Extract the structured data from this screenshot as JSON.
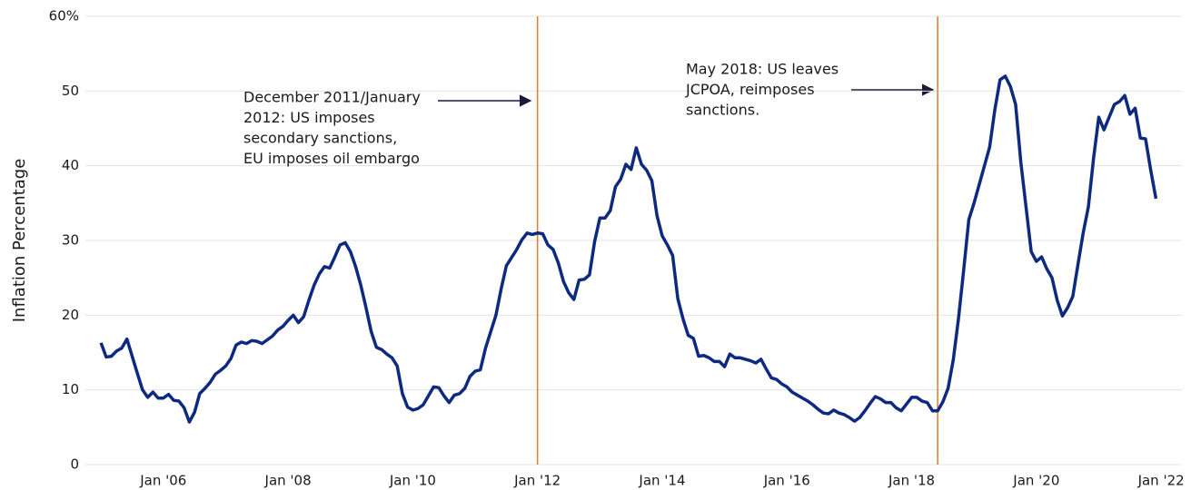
{
  "chart_data": {
    "type": "line",
    "ylabel": "Inflation Percentage",
    "ylim": [
      0,
      60
    ],
    "yticks": [
      0,
      10,
      20,
      30,
      40,
      50,
      {
        "value": 60,
        "label": "60%"
      }
    ],
    "xlim": [
      "2004-10",
      "2022-05"
    ],
    "xticks": [
      {
        "value": "2006-01",
        "label": "Jan '06"
      },
      {
        "value": "2008-01",
        "label": "Jan '08"
      },
      {
        "value": "2010-01",
        "label": "Jan '10"
      },
      {
        "value": "2012-01",
        "label": "Jan '12"
      },
      {
        "value": "2014-01",
        "label": "Jan '14"
      },
      {
        "value": "2016-01",
        "label": "Jan '16"
      },
      {
        "value": "2018-01",
        "label": "Jan '18"
      },
      {
        "value": "2020-01",
        "label": "Jan '20"
      },
      {
        "value": "2022-01",
        "label": "Jan '22"
      }
    ],
    "grid": true,
    "x": [
      "2005-01",
      "2005-02",
      "2005-03",
      "2005-04",
      "2005-05",
      "2005-06",
      "2005-07",
      "2005-08",
      "2005-09",
      "2005-10",
      "2005-11",
      "2005-12",
      "2006-01",
      "2006-02",
      "2006-03",
      "2006-04",
      "2006-05",
      "2006-06",
      "2006-07",
      "2006-08",
      "2006-09",
      "2006-10",
      "2006-11",
      "2006-12",
      "2007-01",
      "2007-02",
      "2007-03",
      "2007-04",
      "2007-05",
      "2007-06",
      "2007-07",
      "2007-08",
      "2007-09",
      "2007-10",
      "2007-11",
      "2007-12",
      "2008-01",
      "2008-02",
      "2008-03",
      "2008-04",
      "2008-05",
      "2008-06",
      "2008-07",
      "2008-08",
      "2008-09",
      "2008-10",
      "2008-11",
      "2008-12",
      "2009-01",
      "2009-02",
      "2009-03",
      "2009-04",
      "2009-05",
      "2009-06",
      "2009-07",
      "2009-08",
      "2009-09",
      "2009-10",
      "2009-11",
      "2009-12",
      "2010-01",
      "2010-02",
      "2010-03",
      "2010-04",
      "2010-05",
      "2010-06",
      "2010-07",
      "2010-08",
      "2010-09",
      "2010-10",
      "2010-11",
      "2010-12",
      "2011-01",
      "2011-02",
      "2011-03",
      "2011-04",
      "2011-05",
      "2011-06",
      "2011-07",
      "2011-08",
      "2011-09",
      "2011-10",
      "2011-11",
      "2011-12",
      "2012-01",
      "2012-02",
      "2012-03",
      "2012-04",
      "2012-05",
      "2012-06",
      "2012-07",
      "2012-08",
      "2012-09",
      "2012-10",
      "2012-11",
      "2012-12",
      "2013-01",
      "2013-02",
      "2013-03",
      "2013-04",
      "2013-05",
      "2013-06",
      "2013-07",
      "2013-08",
      "2013-09",
      "2013-10",
      "2013-11",
      "2013-12",
      "2014-01",
      "2014-02",
      "2014-03",
      "2014-04",
      "2014-05",
      "2014-06",
      "2014-07",
      "2014-08",
      "2014-09",
      "2014-10",
      "2014-11",
      "2014-12",
      "2015-01",
      "2015-02",
      "2015-03",
      "2015-04",
      "2015-05",
      "2015-06",
      "2015-07",
      "2015-08",
      "2015-09",
      "2015-10",
      "2015-11",
      "2015-12",
      "2016-01",
      "2016-02",
      "2016-03",
      "2016-04",
      "2016-05",
      "2016-06",
      "2016-07",
      "2016-08",
      "2016-09",
      "2016-10",
      "2016-11",
      "2016-12",
      "2017-01",
      "2017-02",
      "2017-03",
      "2017-04",
      "2017-05",
      "2017-06",
      "2017-07",
      "2017-08",
      "2017-09",
      "2017-10",
      "2017-11",
      "2017-12",
      "2018-01",
      "2018-02",
      "2018-03",
      "2018-04",
      "2018-05",
      "2018-06",
      "2018-07",
      "2018-08",
      "2018-09",
      "2018-10",
      "2018-11",
      "2018-12",
      "2019-01",
      "2019-02",
      "2019-03",
      "2019-04",
      "2019-05",
      "2019-06",
      "2019-07",
      "2019-08",
      "2019-09",
      "2019-10",
      "2019-11",
      "2019-12",
      "2020-01",
      "2020-02",
      "2020-03",
      "2020-04",
      "2020-05",
      "2020-06",
      "2020-07",
      "2020-08",
      "2020-09",
      "2020-10",
      "2020-11",
      "2020-12",
      "2021-01",
      "2021-02",
      "2021-03",
      "2021-04",
      "2021-05",
      "2021-06",
      "2021-07",
      "2021-08",
      "2021-09",
      "2021-10",
      "2021-11",
      "2021-12"
    ],
    "series": [
      {
        "color": "#0d2a80",
        "values": [
          16.3,
          14.4,
          14.5,
          15.2,
          15.6,
          16.8,
          14.5,
          12.2,
          10,
          9,
          9.7,
          8.9,
          8.9,
          9.4,
          8.6,
          8.5,
          7.6,
          5.7,
          7,
          9.5,
          10.2,
          11,
          12.1,
          12.6,
          13.2,
          14.2,
          16,
          16.4,
          16.2,
          16.6,
          16.5,
          16.2,
          16.7,
          17.2,
          18,
          18.5,
          19.3,
          20,
          19,
          19.8,
          22,
          24,
          25.5,
          26.5,
          26.3,
          27.8,
          29.4,
          29.7,
          28.5,
          26.5,
          24,
          21,
          17.8,
          15.7,
          15.4,
          14.8,
          14.3,
          13.2,
          9.5,
          7.7,
          7.3,
          7.5,
          8,
          9.2,
          10.4,
          10.3,
          9.2,
          8.3,
          9.3,
          9.5,
          10.2,
          11.8,
          12.5,
          12.7,
          15.6,
          17.8,
          20,
          23.5,
          26.6,
          27.7,
          28.8,
          30.1,
          31,
          30.8,
          31,
          30.9,
          29.4,
          28.8,
          27,
          24.5,
          23,
          22.1,
          24.7,
          24.8,
          25.4,
          29.9,
          33,
          33,
          34,
          37.2,
          38.2,
          40.2,
          39.5,
          42.4,
          40.2,
          39.4,
          38,
          33.3,
          30.6,
          29.4,
          28,
          22.2,
          19.5,
          17.3,
          16.9,
          14.5,
          14.6,
          14.3,
          13.8,
          13.8,
          13.1,
          14.8,
          14.3,
          14.3,
          14.1,
          13.9,
          13.6,
          14.1,
          12.8,
          11.6,
          11.4,
          10.8,
          10.4,
          9.7,
          9.3,
          8.9,
          8.5,
          8,
          7.4,
          6.9,
          6.8,
          7.3,
          6.9,
          6.7,
          6.3,
          5.8,
          6.3,
          7.2,
          8.2,
          9.1,
          8.8,
          8.3,
          8.3,
          7.6,
          7.2,
          8.1,
          9,
          9,
          8.5,
          8.3,
          7.2,
          7.2,
          8.4,
          10.2,
          14,
          19.5,
          26,
          32.8,
          35,
          37.5,
          40,
          42.5,
          47.5,
          51.5,
          52,
          50.6,
          48.2,
          40.5,
          34.5,
          28.5,
          27.2,
          27.8,
          26.2,
          25,
          22,
          19.9,
          21,
          22.5,
          26.8,
          31,
          34.5,
          41,
          46.5,
          44.8,
          46.5,
          48.2,
          48.6,
          49.4,
          46.9,
          47.7,
          43.7,
          43.6,
          39.4,
          35.6
        ]
      }
    ],
    "vlines": [
      {
        "x": "2012-01",
        "color": "#e8782a"
      },
      {
        "x": "2018-06",
        "color": "#e8782a"
      }
    ],
    "annotations": [
      {
        "lines": [
          "December 2011/January",
          "2012: US imposes",
          "secondary sanctions,",
          "EU imposes oil embargo"
        ]
      },
      {
        "lines": [
          "May 2018: US leaves",
          "JCPOA, reimposes",
          "sanctions."
        ]
      }
    ]
  }
}
